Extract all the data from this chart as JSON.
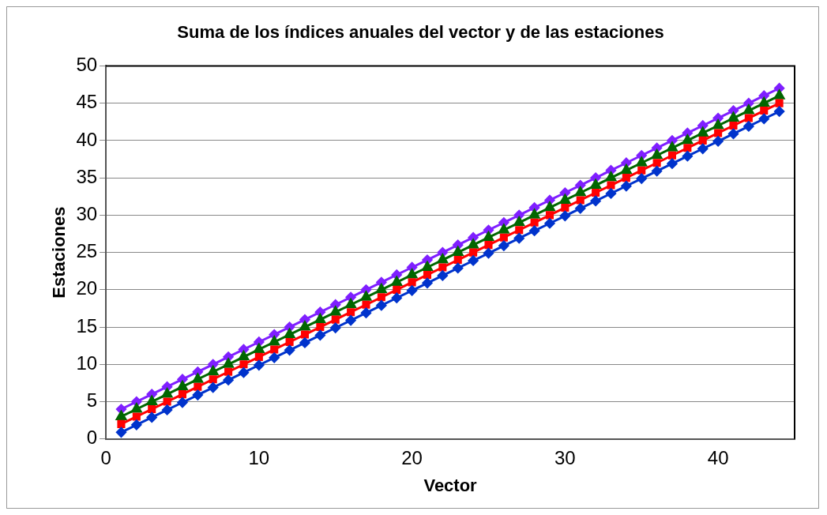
{
  "chart_data": {
    "type": "line",
    "title": "Suma de los índices anuales del vector y de las estaciones",
    "xlabel": "Vector",
    "ylabel": "Estaciones",
    "x": [
      1,
      2,
      3,
      4,
      5,
      6,
      7,
      8,
      9,
      10,
      11,
      12,
      13,
      14,
      15,
      16,
      17,
      18,
      19,
      20,
      21,
      22,
      23,
      24,
      25,
      26,
      27,
      28,
      29,
      30,
      31,
      32,
      33,
      34,
      35,
      36,
      37,
      38,
      39,
      40,
      41,
      42,
      43,
      44
    ],
    "series": [
      {
        "color": "#0033cc",
        "marker": "diamond",
        "values": [
          0.9,
          1.9,
          2.9,
          3.9,
          4.9,
          5.9,
          6.9,
          7.9,
          8.9,
          9.9,
          10.9,
          11.9,
          12.9,
          13.9,
          14.9,
          15.9,
          16.9,
          17.9,
          18.9,
          19.9,
          20.9,
          21.9,
          22.9,
          23.9,
          24.9,
          25.9,
          26.9,
          27.9,
          28.9,
          29.9,
          30.9,
          31.9,
          32.9,
          33.9,
          34.9,
          35.9,
          36.9,
          37.9,
          38.9,
          39.9,
          40.9,
          41.9,
          42.9,
          43.9
        ]
      },
      {
        "color": "#ff0000",
        "marker": "square",
        "values": [
          2,
          3,
          4,
          5,
          6,
          7,
          8,
          9,
          10,
          11,
          12,
          13,
          14,
          15,
          16,
          17,
          18,
          19,
          20,
          21,
          22,
          23,
          24,
          25,
          26,
          27,
          28,
          29,
          30,
          31,
          32,
          33,
          34,
          35,
          36,
          37,
          38,
          39,
          40,
          41,
          42,
          43,
          44,
          45
        ]
      },
      {
        "color": "#006600",
        "marker": "triangle",
        "values": [
          3,
          4,
          5,
          6,
          7,
          8,
          9,
          10,
          11,
          12,
          13,
          14,
          15,
          16,
          17,
          18,
          19,
          20,
          21,
          22,
          23,
          24,
          25,
          26,
          27,
          28,
          29,
          30,
          31,
          32,
          33,
          34,
          35,
          36,
          37,
          38,
          39,
          40,
          41,
          42,
          43,
          44,
          45,
          46
        ]
      },
      {
        "color": "#7f1fff",
        "marker": "diamond",
        "values": [
          4,
          5,
          6,
          7,
          8,
          9,
          10,
          11,
          12,
          13,
          14,
          15,
          16,
          17,
          18,
          19,
          20,
          21,
          22,
          23,
          24,
          25,
          26,
          27,
          28,
          29,
          30,
          31,
          32,
          33,
          34,
          35,
          36,
          37,
          38,
          39,
          40,
          41,
          42,
          43,
          44,
          45,
          46,
          47
        ]
      }
    ],
    "xlim": [
      0,
      45
    ],
    "xticks": [
      0,
      10,
      20,
      30,
      40
    ],
    "ylim": [
      0,
      50
    ],
    "yticks": [
      0,
      5,
      10,
      15,
      20,
      25,
      30,
      35,
      40,
      45,
      50
    ],
    "grid": "y",
    "legend": false
  }
}
